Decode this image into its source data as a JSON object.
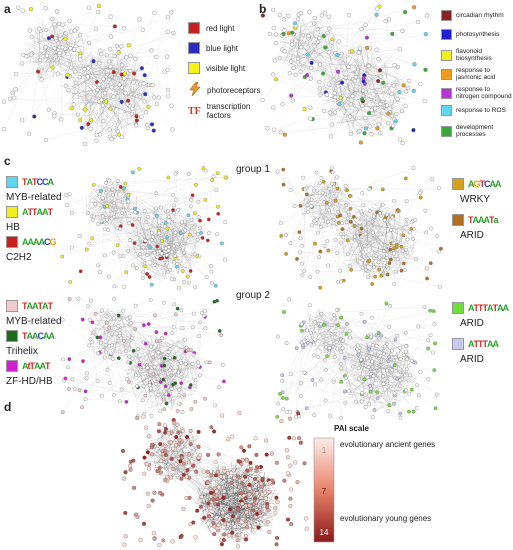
{
  "panels": {
    "a": "a",
    "b": "b",
    "c": "c",
    "d": "d"
  },
  "legend_a": [
    {
      "label": "red light",
      "color": "#c8201e"
    },
    {
      "label": "blue light",
      "color": "#2b2bbf"
    },
    {
      "label": "visible light",
      "color": "#f3f31a"
    },
    {
      "label": "photoreceptors",
      "color": "#f39a1e",
      "icon": "lightning-icon"
    },
    {
      "label": "transcription factors",
      "color": "#c0392b",
      "icon": "tf-icon",
      "symbol": "TF"
    }
  ],
  "legend_b": [
    {
      "label": "circadian rhythm",
      "color": "#8b2323"
    },
    {
      "label": "photosynthesis",
      "color": "#1f1fd6"
    },
    {
      "label": "flavonoid biosynthesis",
      "color": "#f0f020"
    },
    {
      "label": "response to jasmonic acid",
      "color": "#f09a1a"
    },
    {
      "label": "response to nitrogen compound",
      "color": "#b535d6"
    },
    {
      "label": "response to ROS",
      "color": "#5fd6f0"
    },
    {
      "label": "development processes",
      "color": "#3aa83a"
    }
  ],
  "groups": {
    "group1": "group 1",
    "group2": "group 2"
  },
  "motifs_left_g1": [
    {
      "name": "MYB-related",
      "color": "#5fd6f0",
      "logo": "TATCCA"
    },
    {
      "name": "HB",
      "color": "#f0f020",
      "logo": "ATTAAT"
    },
    {
      "name": "C2H2",
      "color": "#c8201e",
      "logo": "AAAACG"
    }
  ],
  "motifs_right_g1": [
    {
      "name": "WRKY",
      "color": "#d4a017",
      "logo": "AGTCAA"
    },
    {
      "name": "ARID",
      "color": "#b07020",
      "logo": "TAAATa"
    }
  ],
  "motifs_left_g2": [
    {
      "name": "MYB-related",
      "color": "#f2cccc",
      "logo": "TAATAT"
    },
    {
      "name": "Trihelix",
      "color": "#1e6b1e",
      "logo": "TAACAA"
    },
    {
      "name": "ZF-HD/HB",
      "color": "#d01fd0",
      "logo": "AtTAAT"
    }
  ],
  "motifs_right_g2": [
    {
      "name": "ARID",
      "color": "#6fe03a",
      "logo": "ATTTATAA"
    },
    {
      "name": "ARID",
      "color": "#c8c8f0",
      "logo": "ATTTAA"
    }
  ],
  "pai": {
    "title": "PAI scale",
    "ticks": [
      "1",
      "7",
      "14"
    ],
    "top_label": "evolutionary ancient genes",
    "bottom_label": "evolutionary young genes",
    "color_low": "#fbece6",
    "color_high": "#8b1a1a"
  }
}
